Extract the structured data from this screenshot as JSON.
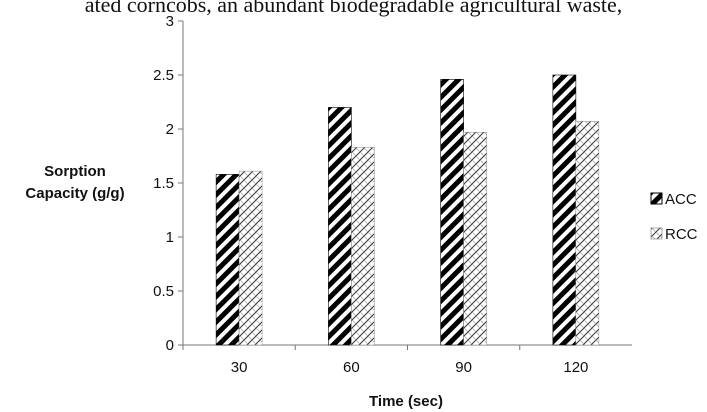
{
  "header_text": "ated corncobs, an abundant biodegradable agricultural waste,",
  "chart_data": {
    "type": "bar",
    "categories": [
      "30",
      "60",
      "90",
      "120"
    ],
    "series": [
      {
        "name": "ACC",
        "values": [
          1.58,
          2.2,
          2.46,
          2.5
        ]
      },
      {
        "name": "RCC",
        "values": [
          1.61,
          1.83,
          1.97,
          2.07
        ]
      }
    ],
    "xlabel": "Time (sec)",
    "ylabel_lines": [
      "Sorption",
      "Capacity (g/g)"
    ],
    "ylim": [
      0,
      3
    ],
    "yticks": [
      "0",
      "0.5",
      "1",
      "1.5",
      "2",
      "2.5",
      "3"
    ],
    "legend_position": "right",
    "grid": false
  }
}
